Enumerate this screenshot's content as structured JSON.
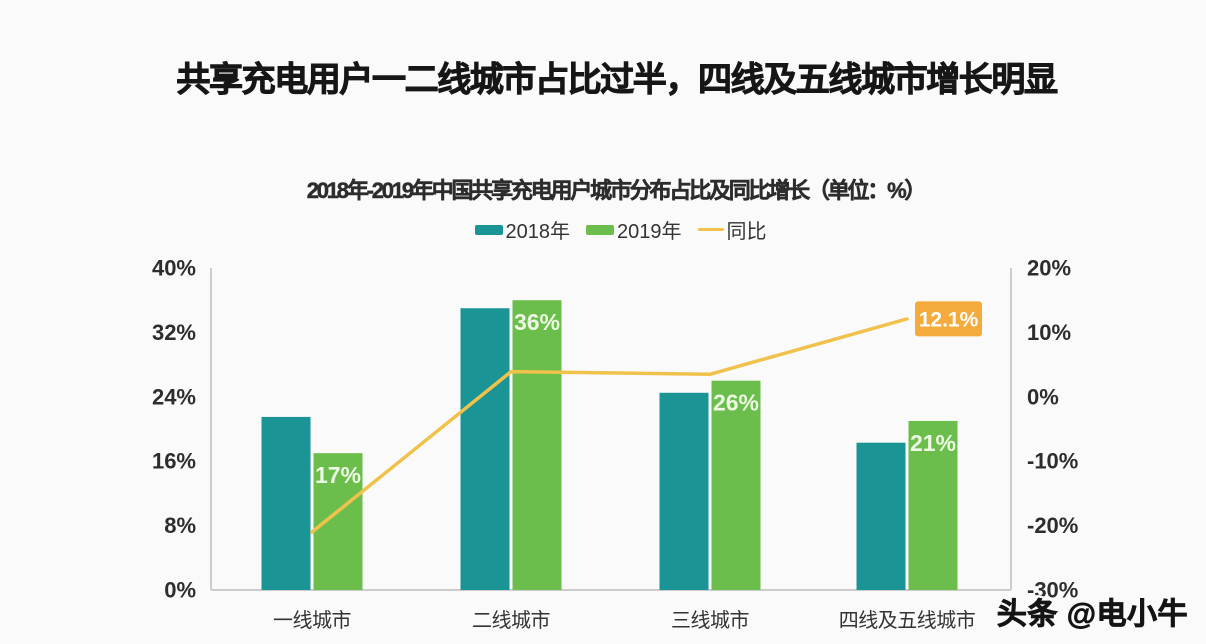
{
  "header": {
    "title": "共享充电用户一二线城市占比过半，四线及五线城市增长明显"
  },
  "chart_data": {
    "type": "bar",
    "subtype": "grouped bars with overlay line on secondary axis",
    "subtitle": "2018年-2019年中国共享充电用户城市分布占比及同比增长（单位：%）",
    "categories": [
      "一线城市",
      "二线城市",
      "三线城市",
      "四线及五线城市"
    ],
    "series": [
      {
        "name": "2018年",
        "type": "bar",
        "axis": "left",
        "color": "#1a9494",
        "values": [
          21.5,
          35,
          24.5,
          18.3
        ]
      },
      {
        "name": "2019年",
        "type": "bar",
        "axis": "left",
        "color": "#6cbe4c",
        "values": [
          17,
          36,
          26,
          21
        ],
        "data_labels": [
          "17%",
          "36%",
          "26%",
          "21%"
        ],
        "data_label_color": "#edf9e4"
      },
      {
        "name": "同比",
        "type": "line",
        "axis": "right",
        "color": "#f0c24c",
        "values": [
          -21,
          3.9,
          3.5,
          12.1
        ],
        "end_label": "12.1%",
        "end_label_bg": "#f4ab3b",
        "end_label_color": "#ffffff"
      }
    ],
    "left_axis": {
      "min": 0,
      "max": 40,
      "tick_values": [
        0,
        8,
        16,
        24,
        32,
        40
      ],
      "tick_labels": [
        "0%",
        "8%",
        "16%",
        "24%",
        "32%",
        "40%"
      ]
    },
    "right_axis": {
      "min": -30,
      "max": 20,
      "tick_values": [
        -30,
        -20,
        -10,
        0,
        10,
        20
      ],
      "tick_labels": [
        "-30%",
        "-20%",
        "-10%",
        "0%",
        "10%",
        "20%"
      ]
    },
    "grid": false,
    "legend_position": "top-center",
    "axis_line_color": "#cccccc"
  },
  "watermark": {
    "text": "头条 @电小牛"
  }
}
